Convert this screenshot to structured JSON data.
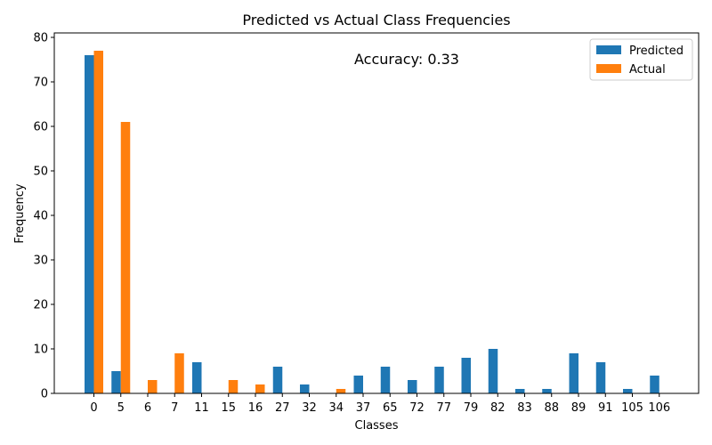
{
  "chart_data": {
    "type": "bar",
    "title": "Predicted vs Actual Class Frequencies",
    "xlabel": "Classes",
    "ylabel": "Frequency",
    "annotation": "Accuracy: 0.33",
    "ylim": [
      0,
      81
    ],
    "yticks": [
      0,
      10,
      20,
      30,
      40,
      50,
      60,
      70,
      80
    ],
    "legend_position": "top-right",
    "categories": [
      "0",
      "5",
      "6",
      "7",
      "11",
      "15",
      "16",
      "27",
      "32",
      "34",
      "37",
      "65",
      "72",
      "77",
      "79",
      "82",
      "83",
      "88",
      "89",
      "91",
      "105",
      "106"
    ],
    "series": [
      {
        "name": "Predicted",
        "color": "#1f77b4",
        "values": [
          76,
          5,
          0,
          0,
          7,
          0,
          0,
          6,
          2,
          0,
          4,
          6,
          3,
          6,
          8,
          10,
          1,
          1,
          9,
          7,
          1,
          4
        ]
      },
      {
        "name": "Actual",
        "color": "#ff7f0e",
        "values": [
          77,
          61,
          3,
          9,
          0,
          3,
          2,
          0,
          0,
          1,
          0,
          0,
          0,
          0,
          0,
          0,
          0,
          0,
          0,
          0,
          0,
          0
        ]
      }
    ]
  }
}
